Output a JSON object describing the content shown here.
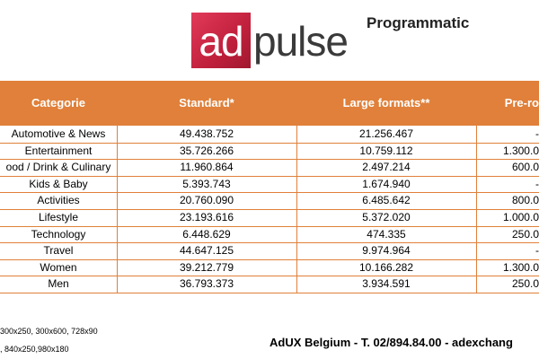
{
  "header": {
    "logo_ad": "ad",
    "logo_pulse": "pulse",
    "subtitle": "Programmatic"
  },
  "table": {
    "columns": [
      "Categorie",
      "Standard*",
      "Large formats**",
      "Pre-ro"
    ],
    "rows": [
      [
        "Automotive & News",
        "49.438.752",
        "21.256.467",
        "-"
      ],
      [
        "Entertainment",
        "35.726.266",
        "10.759.112",
        "1.300.0"
      ],
      [
        "ood / Drink & Culinary",
        "11.960.864",
        "2.497.214",
        "600.0"
      ],
      [
        "Kids & Baby",
        "5.393.743",
        "1.674.940",
        "-"
      ],
      [
        "Activities",
        "20.760.090",
        "6.485.642",
        "800.0"
      ],
      [
        "Lifestyle",
        "23.193.616",
        "5.372.020",
        "1.000.0"
      ],
      [
        "Technology",
        "6.448.629",
        "474.335",
        "250.0"
      ],
      [
        "Travel",
        "44.647.125",
        "9.974.964",
        "-"
      ],
      [
        "Women",
        "39.212.779",
        "10.166.282",
        "1.300.0"
      ],
      [
        "Men",
        "36.793.373",
        "3.934.591",
        "250.0"
      ]
    ]
  },
  "footer": {
    "notes": [
      "300x250, 300x600, 728x90",
      ", 840x250,980x180"
    ],
    "contact": "AdUX Belgium  -  T. 02/894.84.00  -  adexchang"
  }
}
